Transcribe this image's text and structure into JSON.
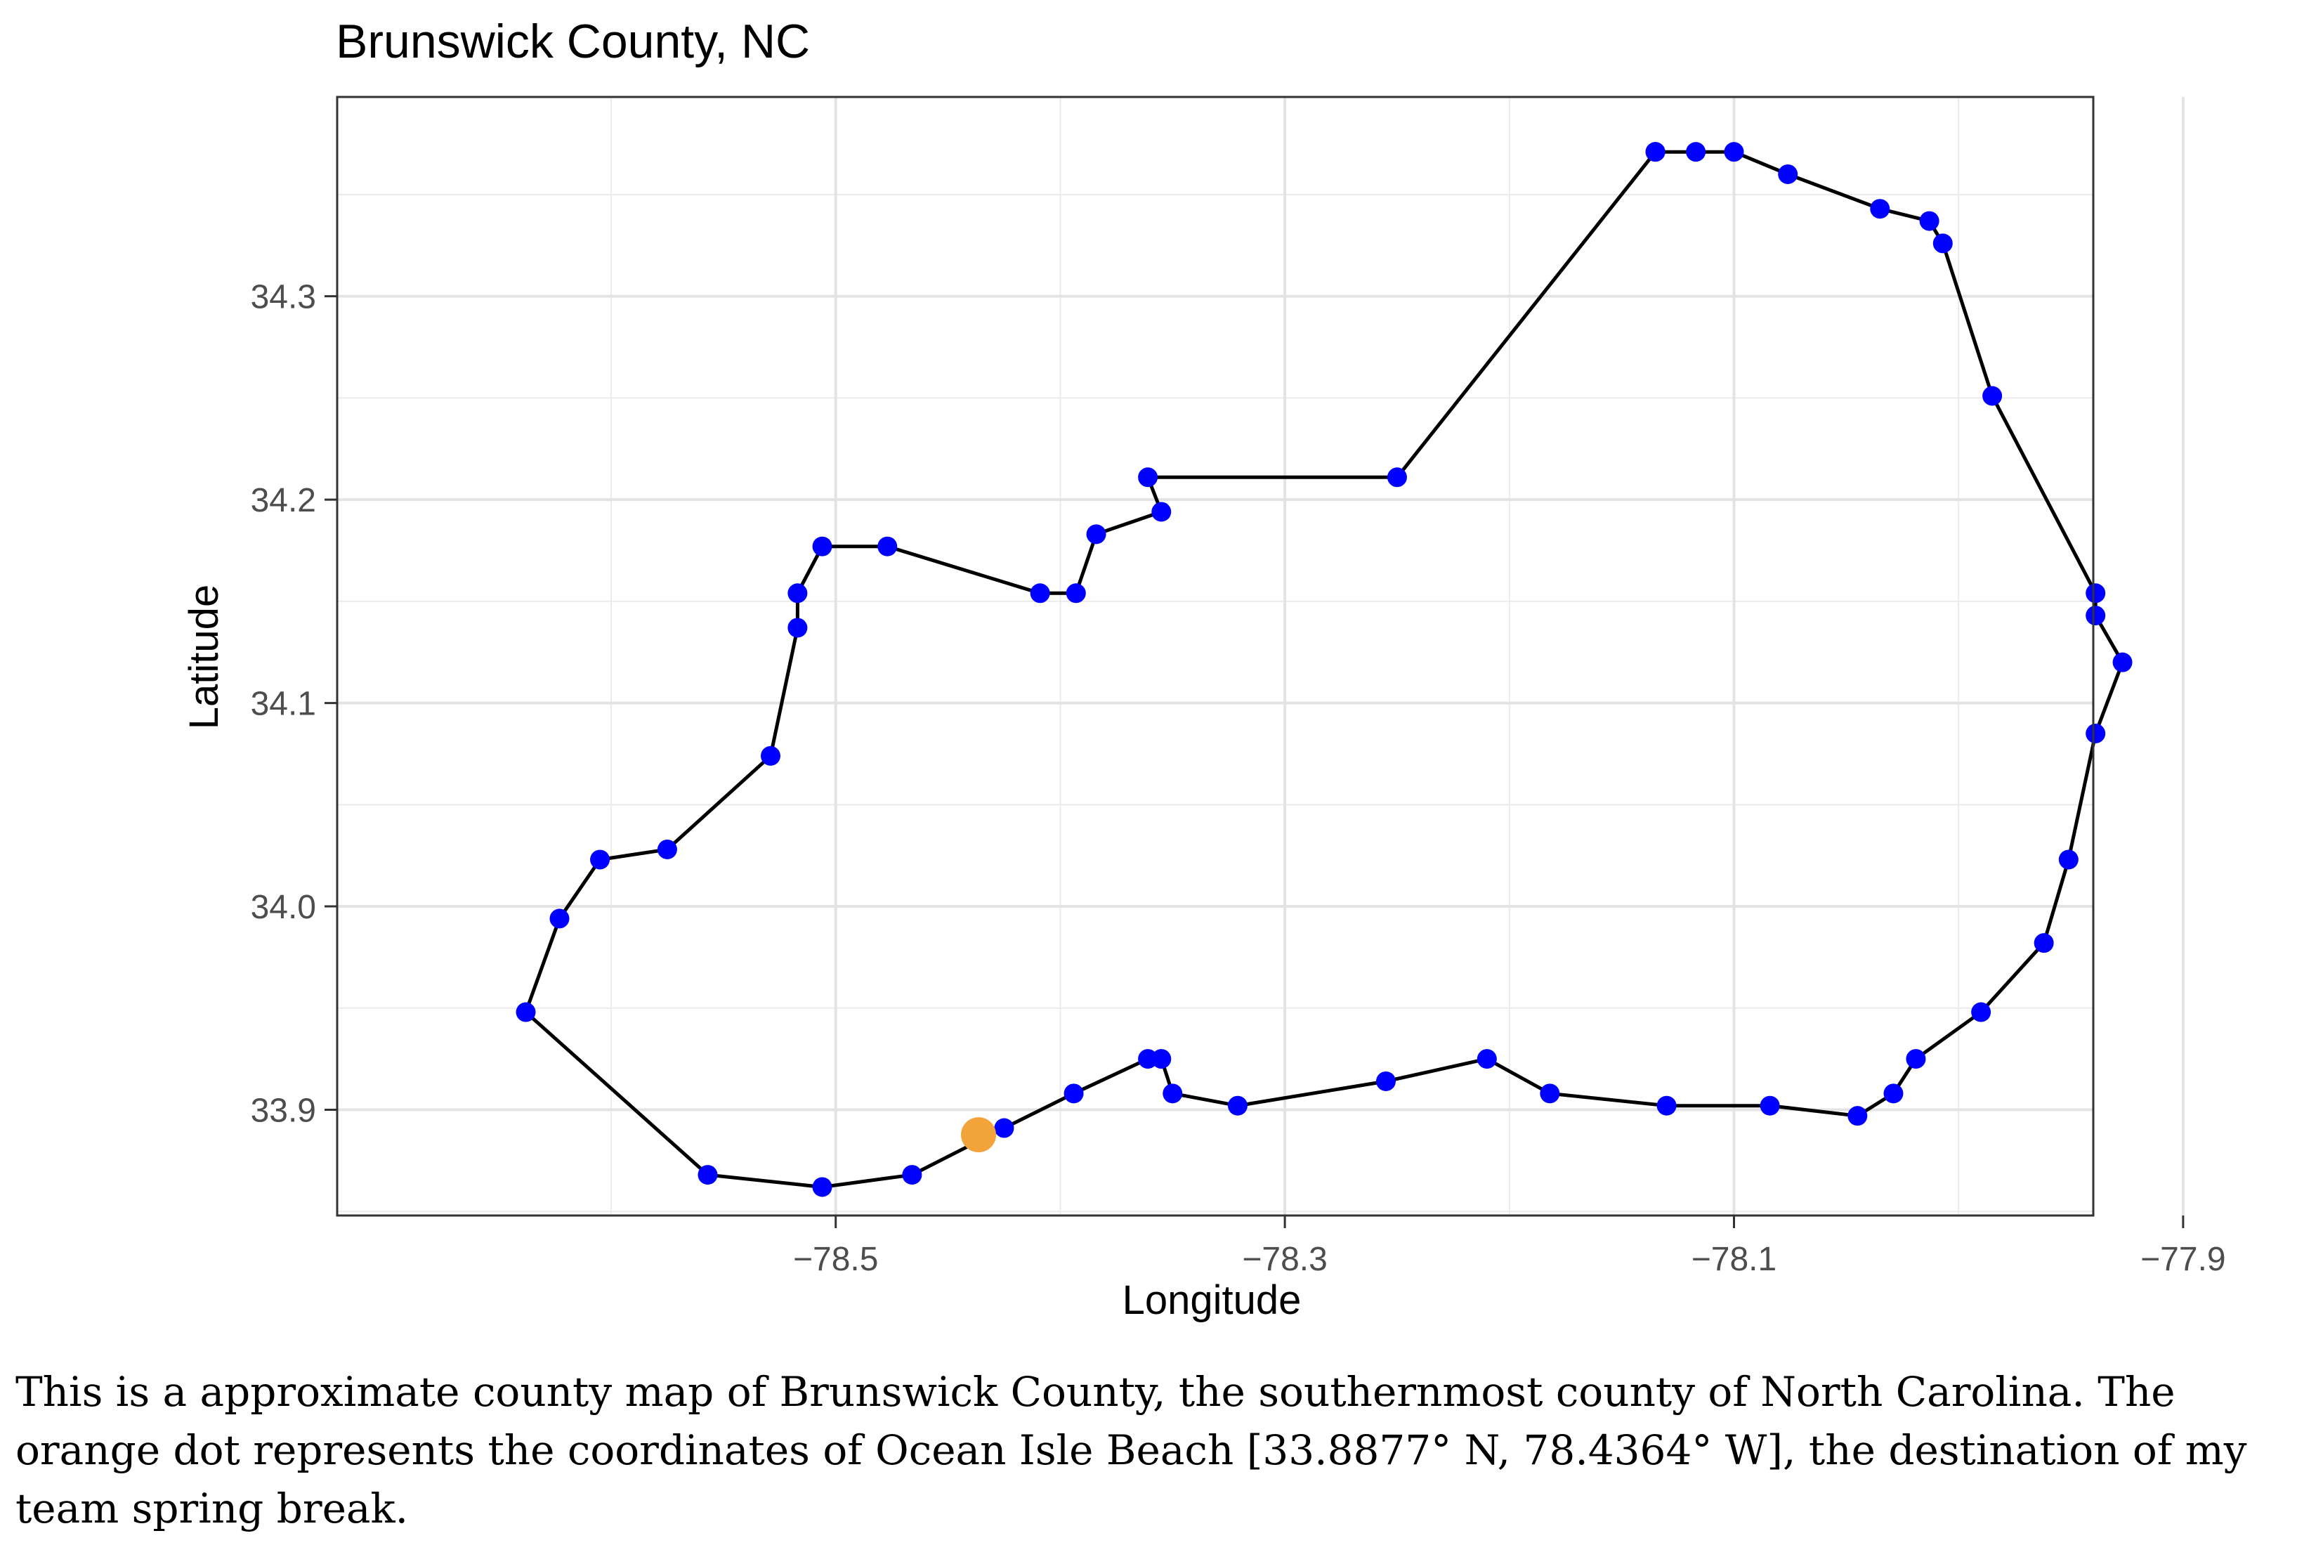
{
  "chart_data": {
    "type": "scatter",
    "title": "Brunswick County, NC",
    "xlabel": "Longitude",
    "ylabel": "Latitude",
    "xlim": [
      -78.722,
      -77.94
    ],
    "ylim": [
      33.848,
      34.398
    ],
    "xticks": [
      -78.5,
      -78.3,
      -78.1,
      -77.9
    ],
    "xtick_labels": [
      "−78.5",
      "−78.3",
      "−78.1",
      "−77.9"
    ],
    "yticks": [
      33.9,
      34.0,
      34.1,
      34.2,
      34.3
    ],
    "ytick_labels": [
      "33.9",
      "34.0",
      "34.1",
      "34.2",
      "34.3"
    ],
    "grid": true,
    "boundary_color": "#000000",
    "point_color": "#0000ff",
    "highlight_color": "#f2a33a",
    "series": [
      {
        "x": [
          -78.135,
          -78.117,
          -78.1,
          -78.076,
          -78.035,
          -78.013,
          -78.007,
          -77.985,
          -77.939,
          -77.939,
          -77.927,
          -77.939,
          -77.951,
          -77.962,
          -77.99,
          -78.019,
          -78.029,
          -78.045,
          -78.084,
          -78.13,
          -78.182,
          -78.21,
          -78.255,
          -78.321,
          -78.35,
          -78.355,
          -78.361,
          -78.394,
          -78.425,
          -78.466,
          -78.506,
          -78.557,
          -78.638,
          -78.623,
          -78.605,
          -78.575,
          -78.529,
          -78.517,
          -78.517,
          -78.506,
          -78.477,
          -78.409,
          -78.393,
          -78.384,
          -78.355,
          -78.361,
          -78.25,
          -78.135
        ],
        "y": [
          34.371,
          34.371,
          34.371,
          34.36,
          34.343,
          34.337,
          34.326,
          34.251,
          34.154,
          34.143,
          34.12,
          34.085,
          34.023,
          33.982,
          33.948,
          33.925,
          33.908,
          33.897,
          33.902,
          33.902,
          33.908,
          33.925,
          33.914,
          33.902,
          33.908,
          33.925,
          33.925,
          33.908,
          33.891,
          33.868,
          33.862,
          33.868,
          33.948,
          33.994,
          34.023,
          34.028,
          34.074,
          34.137,
          34.154,
          34.177,
          34.177,
          34.154,
          34.154,
          34.183,
          34.194,
          34.211,
          34.211,
          34.371
        ]
      }
    ],
    "highlight": {
      "x": -78.4364,
      "y": 33.8877
    }
  },
  "caption": "This is a approximate county map of Brunswick County, the southernmost county of North Carolina. The orange dot represents the coordinates of Ocean Isle Beach [33.8877° N, 78.4364° W], the destination of my team spring break."
}
